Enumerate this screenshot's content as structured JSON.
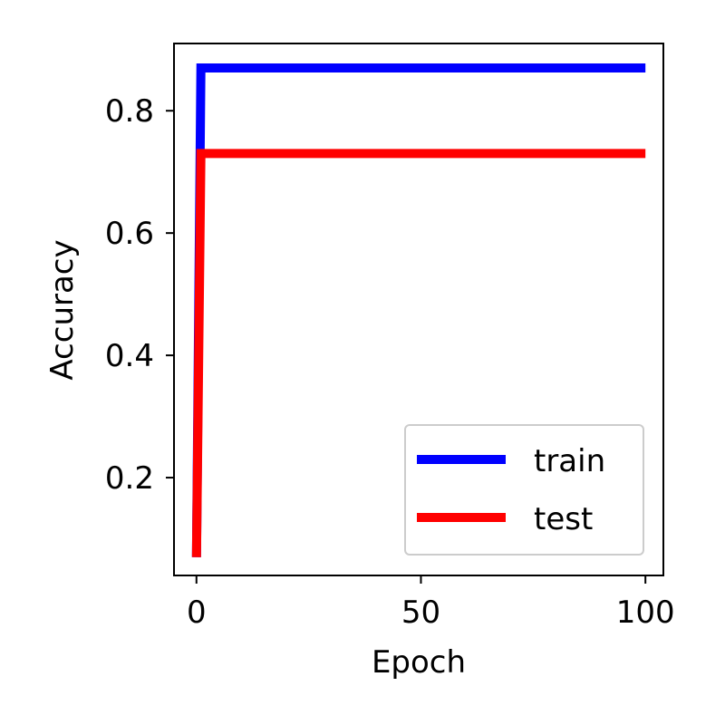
{
  "chart_data": {
    "type": "line",
    "xlabel": "Epoch",
    "ylabel": "Accuracy",
    "xlim": [
      -5,
      104
    ],
    "ylim": [
      0.04,
      0.91
    ],
    "xticks": [
      0,
      50,
      100
    ],
    "yticks": [
      0.2,
      0.4,
      0.6,
      0.8
    ],
    "xtick_labels": [
      "0",
      "50",
      "100"
    ],
    "ytick_labels": [
      "0.2",
      "0.4",
      "0.6",
      "0.8"
    ],
    "grid": false,
    "legend_position": "lower-right",
    "series": [
      {
        "name": "train",
        "color": "#0000ff",
        "x": [
          0,
          1,
          2,
          100
        ],
        "y": [
          0.07,
          0.87,
          0.87,
          0.87
        ]
      },
      {
        "name": "test",
        "color": "#ff0000",
        "x": [
          0,
          1,
          2,
          100
        ],
        "y": [
          0.07,
          0.73,
          0.73,
          0.73
        ]
      }
    ]
  }
}
